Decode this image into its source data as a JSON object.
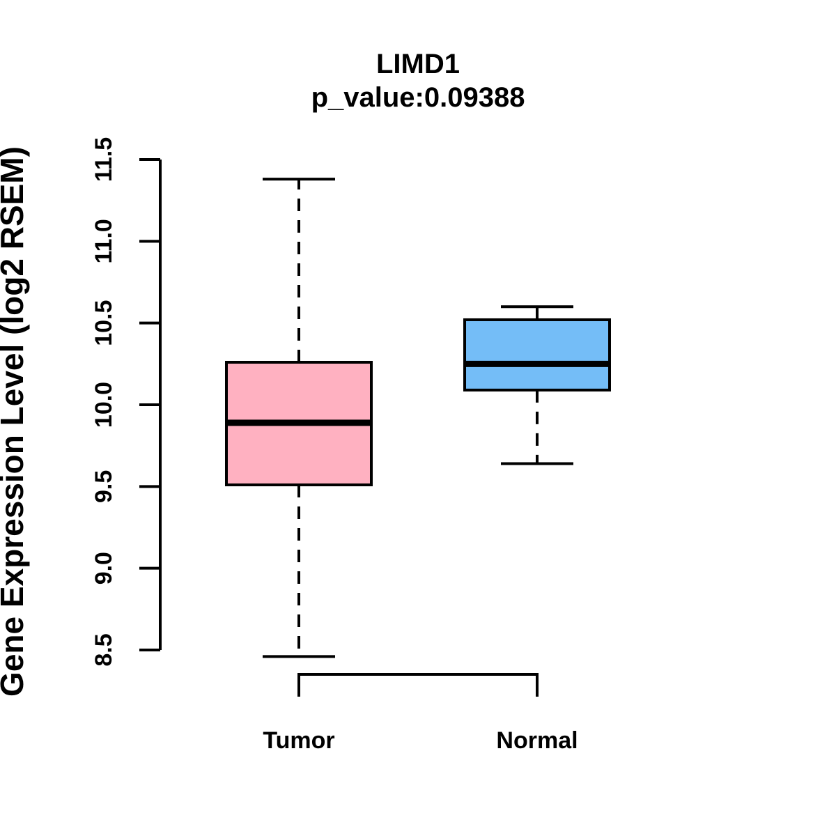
{
  "chart_data": {
    "type": "boxplot",
    "title": "LIMD1",
    "subtitle": "p_value:0.09388",
    "gene": "LIMD1",
    "p_value": 0.09388,
    "ylabel": "Gene Expression Level (log2 RSEM)",
    "ylim": [
      8.5,
      11.5
    ],
    "yticks": [
      8.5,
      9.0,
      9.5,
      10.0,
      10.5,
      11.0,
      11.5
    ],
    "grid": false,
    "legend": "none",
    "axis_color": "#000000",
    "background_color": "#ffffff",
    "groups": [
      {
        "label": "Tumor",
        "color": "#FFB1C1",
        "stats": {
          "whisker_low": 8.46,
          "q1": 9.51,
          "median": 9.89,
          "q3": 10.26,
          "whisker_high": 11.38
        }
      },
      {
        "label": "Normal",
        "color": "#74BDF7",
        "stats": {
          "whisker_low": 9.64,
          "q1": 10.09,
          "median": 10.25,
          "q3": 10.52,
          "whisker_high": 10.6
        }
      }
    ]
  }
}
